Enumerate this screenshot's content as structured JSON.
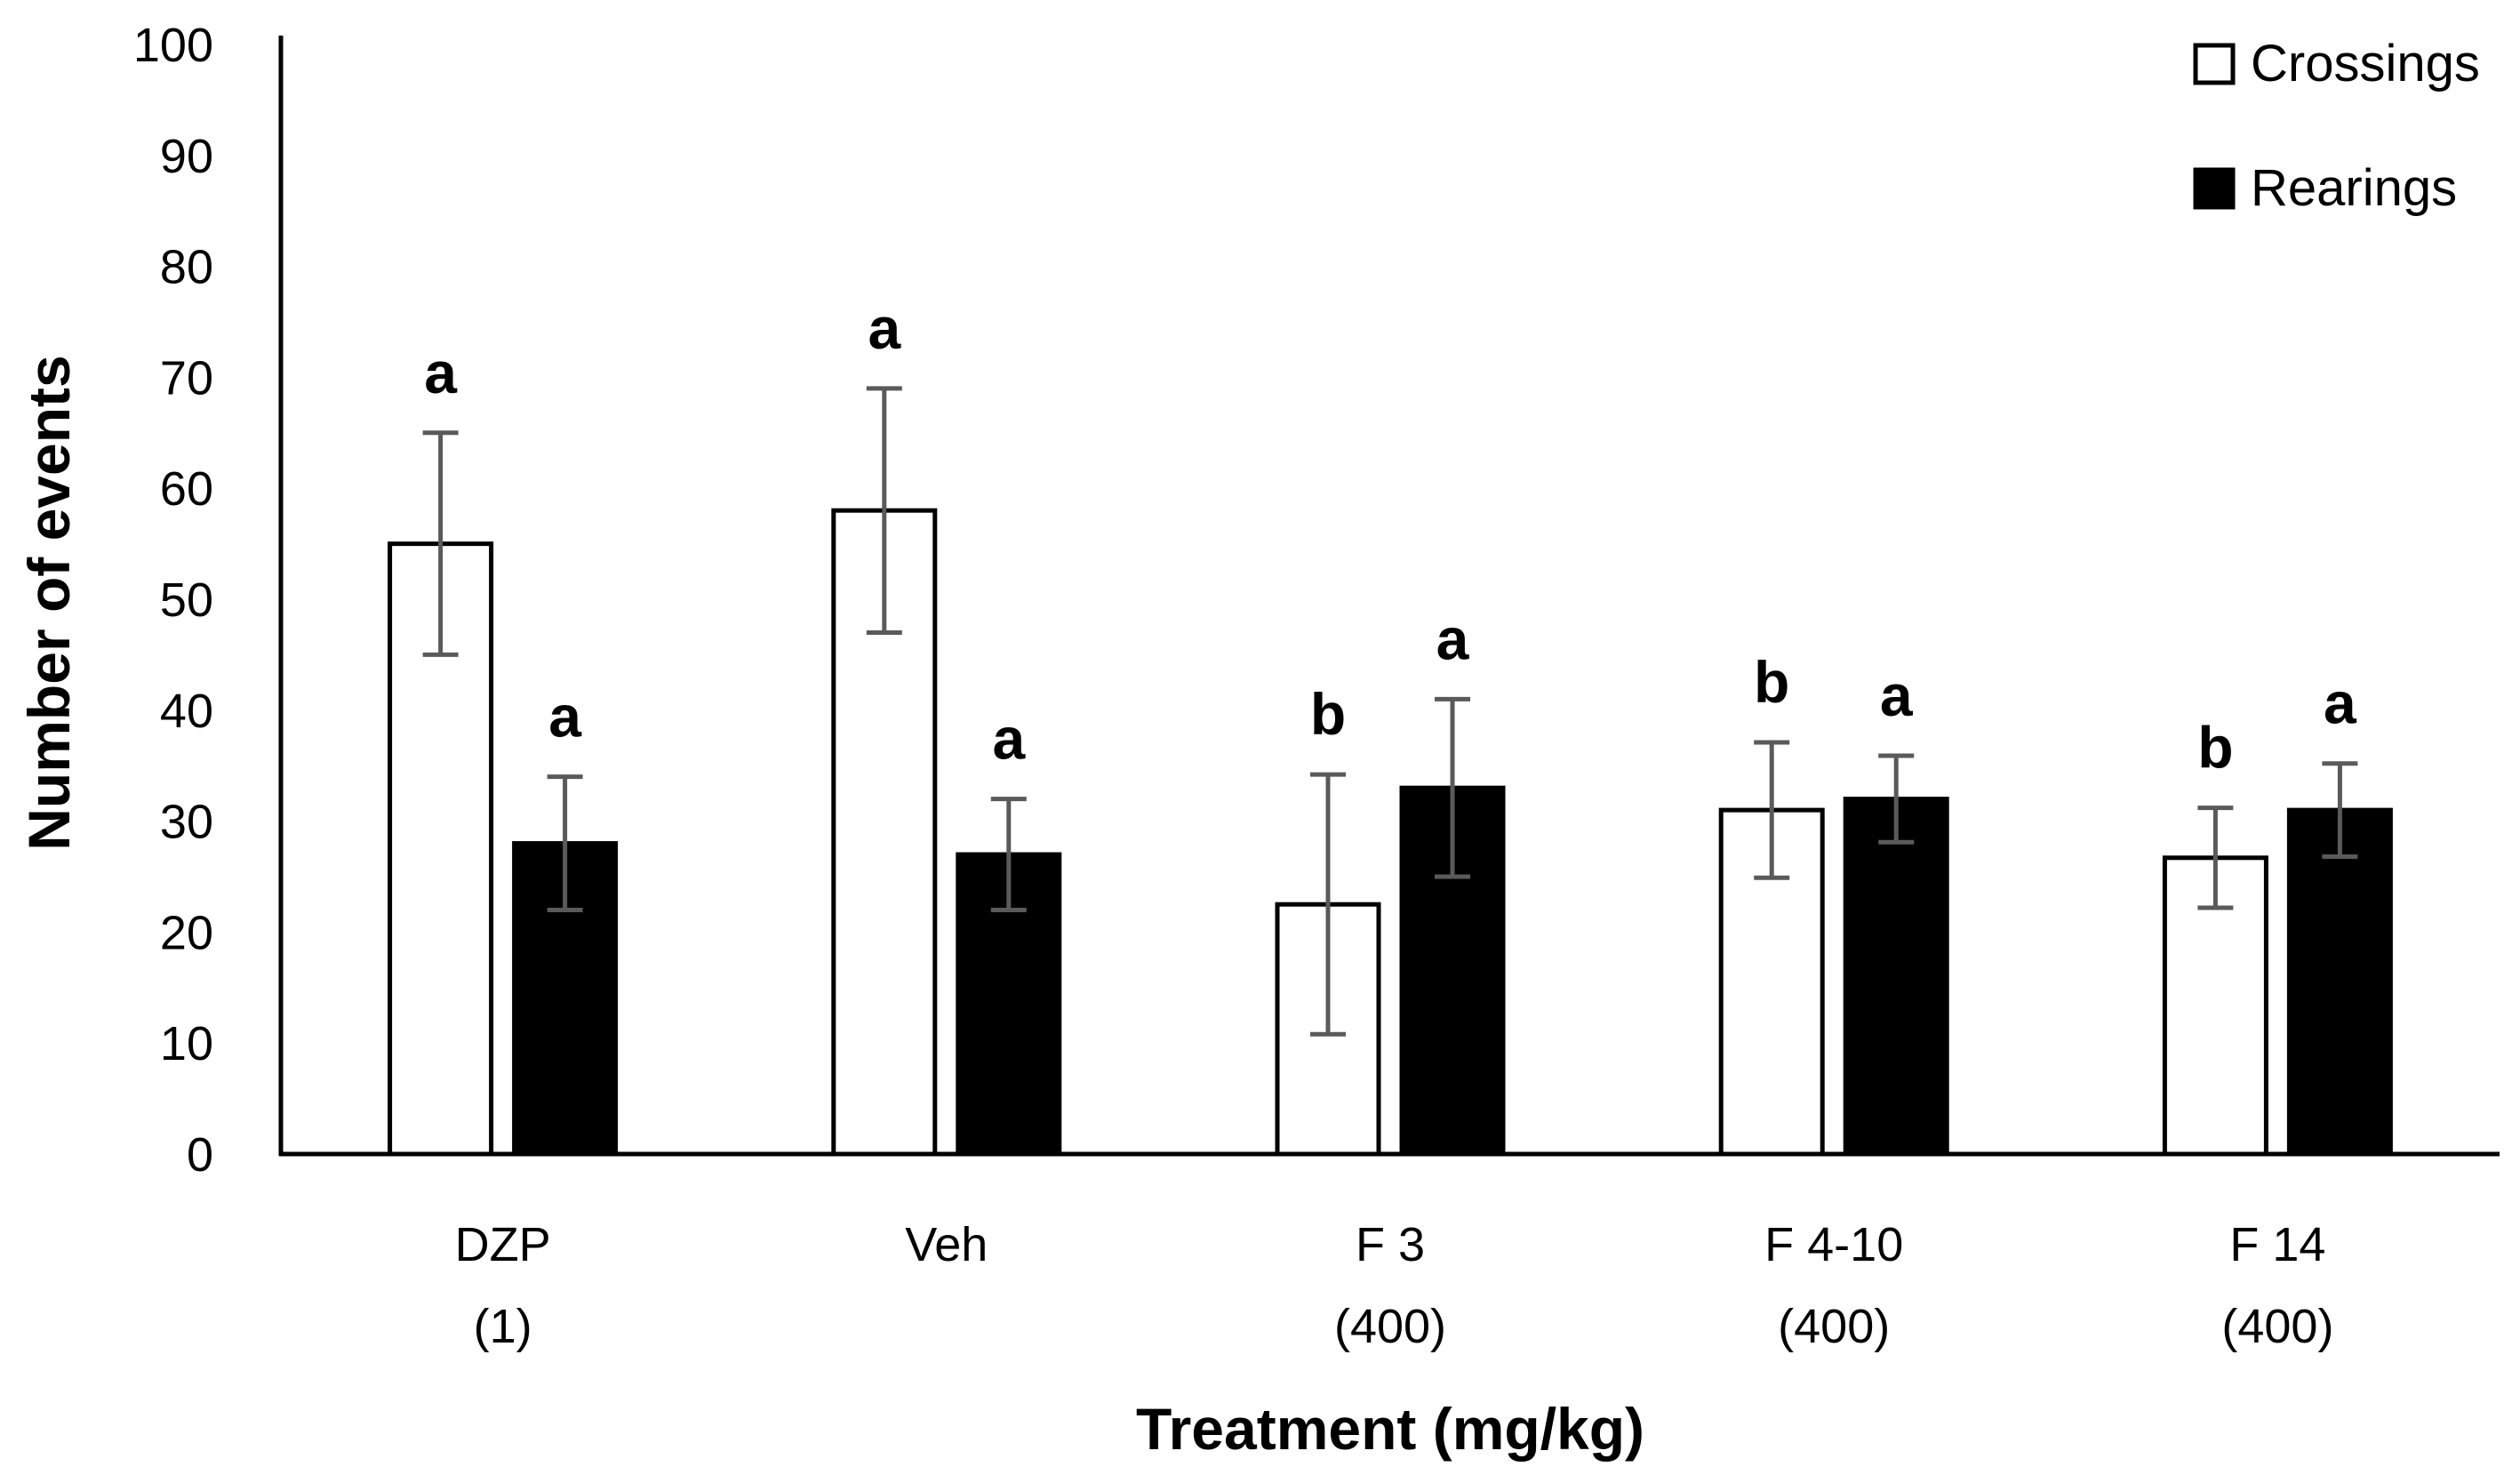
{
  "chart_data": {
    "type": "bar",
    "xlabel": "Treatment (mg/kg)",
    "ylabel": "Number of events",
    "ylim": [
      0,
      100
    ],
    "yticks": [
      0,
      10,
      20,
      30,
      40,
      50,
      60,
      70,
      80,
      90,
      100
    ],
    "grid": false,
    "legend_position": "top-right",
    "categories": [
      {
        "line1": "DZP",
        "line2": "(1)"
      },
      {
        "line1": "Veh",
        "line2": ""
      },
      {
        "line1": "F 3",
        "line2": "(400)"
      },
      {
        "line1": "F 4-10",
        "line2": "(400)"
      },
      {
        "line1": "F 14",
        "line2": "(400)"
      }
    ],
    "series": [
      {
        "name": "Crossings",
        "fill": "#ffffff",
        "stroke": "#000000",
        "values": [
          55,
          58,
          22.5,
          31,
          26.7
        ],
        "errors": [
          10,
          11,
          11.7,
          6.1,
          4.5
        ],
        "letters": [
          "a",
          "a",
          "b",
          "b",
          "b"
        ]
      },
      {
        "name": "Rearings",
        "fill": "#000000",
        "stroke": "#000000",
        "values": [
          28,
          27,
          33,
          32,
          31
        ],
        "errors": [
          6,
          5,
          8,
          3.9,
          4.2
        ],
        "letters": [
          "a",
          "a",
          "a",
          "a",
          "a"
        ]
      }
    ],
    "error_bar_color": "#5a5a5a"
  }
}
